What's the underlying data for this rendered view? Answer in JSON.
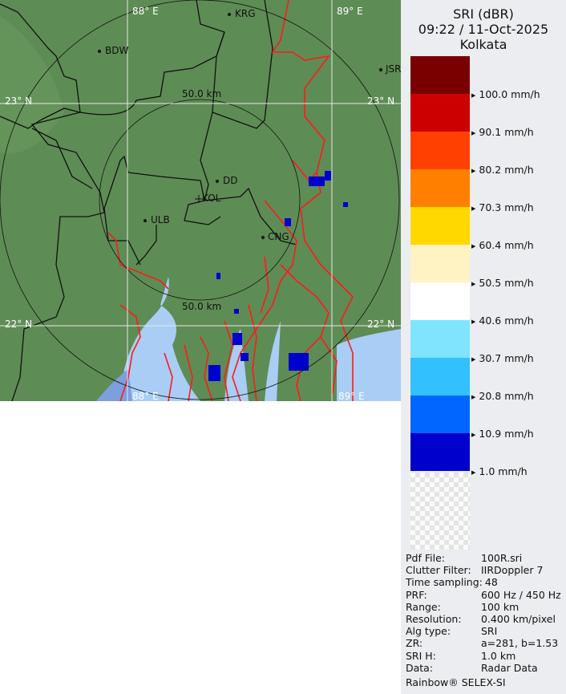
{
  "header": {
    "product": "SRI (dBR)",
    "datetime": "09:22 / 11-Oct-2025",
    "site": "Kolkata"
  },
  "legend": {
    "bands": [
      "#7a0000",
      "#cc0000",
      "#ff4000",
      "#ff8000",
      "#ffd800",
      "#fff3c4",
      "#ffffff",
      "#80e4ff",
      "#33c0ff",
      "#0066ff",
      "#0000cc"
    ],
    "labels": [
      "100.0 mm/h",
      "90.1 mm/h",
      "80.2 mm/h",
      "70.3 mm/h",
      "60.4 mm/h",
      "50.5 mm/h",
      "40.6 mm/h",
      "30.7 mm/h",
      "20.8 mm/h",
      "10.9 mm/h",
      "1.0 mm/h"
    ]
  },
  "map": {
    "grid_labels": {
      "lon1_top": "88° E",
      "lon2_top": "89° E",
      "lon1_bottom": "88° E",
      "lon2_bottom": "89° E",
      "lat1_left": "23° N",
      "lat1_right": "23° N",
      "lat2_left": "22° N",
      "lat2_right": "22° N"
    },
    "range_labels": {
      "inner_top": "50.0 km",
      "inner_bottom": "50.0 km"
    },
    "cities": [
      "KRG",
      "BDW",
      "JSR",
      "DD",
      "KOL",
      "ULB",
      "CNG"
    ],
    "colors": {
      "land": "#5f8f52",
      "water": "#a9cdf5",
      "sea": "#7d9fdc",
      "rivers": "#ff1a1a",
      "rain": "#0000cc"
    }
  },
  "info": {
    "rows": [
      {
        "k": "Pdf File:",
        "v": "100R.sri"
      },
      {
        "k": "Clutter Filter:",
        "v": "IIRDoppler 7"
      },
      {
        "k": "Time sampling:",
        "v": "48"
      },
      {
        "k": "PRF:",
        "v": "600 Hz / 450 Hz"
      },
      {
        "k": "Range:",
        "v": "100 km"
      },
      {
        "k": "Resolution:",
        "v": "0.400 km/pixel"
      },
      {
        "k": "Alg type:",
        "v": "SRI"
      },
      {
        "k": "ZR:",
        "v": "a=281, b=1.53"
      },
      {
        "k": "SRI H:",
        "v": "1.0 km"
      },
      {
        "k": "Data:",
        "v": "Radar Data"
      }
    ],
    "footer": "Rainbow® SELEX-SI"
  }
}
